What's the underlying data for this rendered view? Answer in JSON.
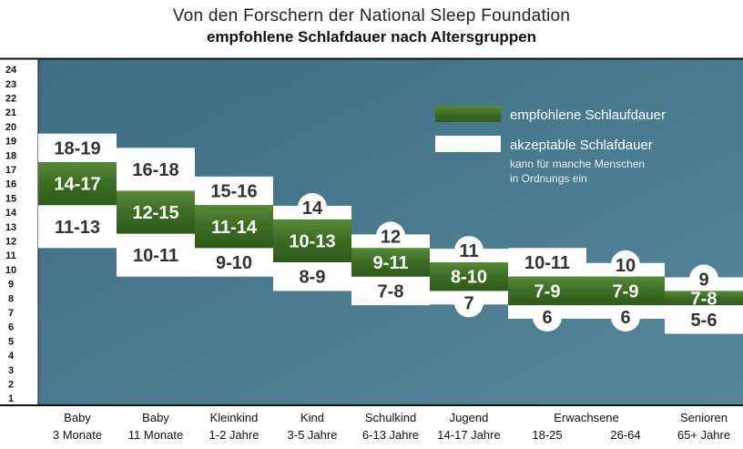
{
  "chart_data": {
    "type": "range-bar",
    "title": "Von den Forschern der National Sleep Foundation",
    "subtitle": "empfohlene Schlafdauer nach Altersgruppen",
    "y_ticks": [
      1,
      2,
      3,
      4,
      5,
      6,
      7,
      8,
      9,
      10,
      11,
      12,
      13,
      14,
      15,
      16,
      17,
      18,
      19,
      20,
      21,
      22,
      23,
      24
    ],
    "ylim": [
      0,
      24
    ],
    "legend": {
      "recommended": "empfohlene Schlaufdauer",
      "acceptable": "akzeptable Schlafdauer",
      "note_line1": "kann für manche Menschen",
      "note_line2": "in Ordnungs ein",
      "placement": "top-right"
    },
    "colors": {
      "background": "#4b7a8e",
      "recommended": "#3e6e26",
      "acceptable": "#ffffff"
    },
    "group_label": "Erwachsene",
    "categories": [
      {
        "line1": "Baby",
        "line2": "3 Monate",
        "rec": [
          14,
          17
        ],
        "rec_label": "14-17",
        "upper": [
          17,
          19
        ],
        "upper_label": "18-19",
        "upper_shape": "bar",
        "lower": [
          11,
          14
        ],
        "lower_label": "11-13",
        "lower_shape": "bar"
      },
      {
        "line1": "Baby",
        "line2": "11 Monate",
        "rec": [
          12,
          15
        ],
        "rec_label": "12-15",
        "upper": [
          15,
          18
        ],
        "upper_label": "16-18",
        "upper_shape": "bar",
        "lower": [
          9,
          12
        ],
        "lower_label": "10-11",
        "lower_shape": "bar"
      },
      {
        "line1": "Kleinkind",
        "line2": "1-2 Jahre",
        "rec": [
          11,
          14
        ],
        "rec_label": "11-14",
        "upper": [
          14,
          16
        ],
        "upper_label": "15-16",
        "upper_shape": "bar",
        "lower": [
          9,
          11
        ],
        "lower_label": "9-10",
        "lower_shape": "bar"
      },
      {
        "line1": "Kind",
        "line2": "3-5 Jahre",
        "rec": [
          10,
          13
        ],
        "rec_label": "10-13",
        "upper": [
          13,
          14
        ],
        "upper_label": "14",
        "upper_shape": "bubble",
        "lower": [
          8,
          10
        ],
        "lower_label": "8-9",
        "lower_shape": "bar"
      },
      {
        "line1": "Schulkind",
        "line2": "6-13 Jahre",
        "rec": [
          9,
          11
        ],
        "rec_label": "9-11",
        "upper": [
          11,
          12
        ],
        "upper_label": "12",
        "upper_shape": "bubble",
        "lower": [
          7,
          9
        ],
        "lower_label": "7-8",
        "lower_shape": "bar"
      },
      {
        "line1": "Jugend",
        "line2": "14-17 Jahre",
        "rec": [
          8,
          10
        ],
        "rec_label": "8-10",
        "upper": [
          10,
          11
        ],
        "upper_label": "11",
        "upper_shape": "bubble",
        "lower": [
          7,
          8
        ],
        "lower_label": "7",
        "lower_shape": "bubble"
      },
      {
        "line1": "",
        "line2": "18-25",
        "rec": [
          7,
          9
        ],
        "rec_label": "7-9",
        "upper": [
          9,
          11
        ],
        "upper_label": "10-11",
        "upper_shape": "bar",
        "lower": [
          6,
          7
        ],
        "lower_label": "6",
        "lower_shape": "bubble"
      },
      {
        "line1": "",
        "line2": "26-64",
        "rec": [
          7,
          9
        ],
        "rec_label": "7-9",
        "upper": [
          9,
          10
        ],
        "upper_label": "10",
        "upper_shape": "bubble",
        "lower": [
          6,
          7
        ],
        "lower_label": "6",
        "lower_shape": "bubble"
      },
      {
        "line1": "Senioren",
        "line2": "65+ Jahre",
        "rec": [
          7,
          8
        ],
        "rec_label": "7-8",
        "upper": [
          8,
          9
        ],
        "upper_label": "9",
        "upper_shape": "bubble",
        "lower": [
          5,
          7
        ],
        "lower_label": "5-6",
        "lower_shape": "bar"
      }
    ]
  }
}
